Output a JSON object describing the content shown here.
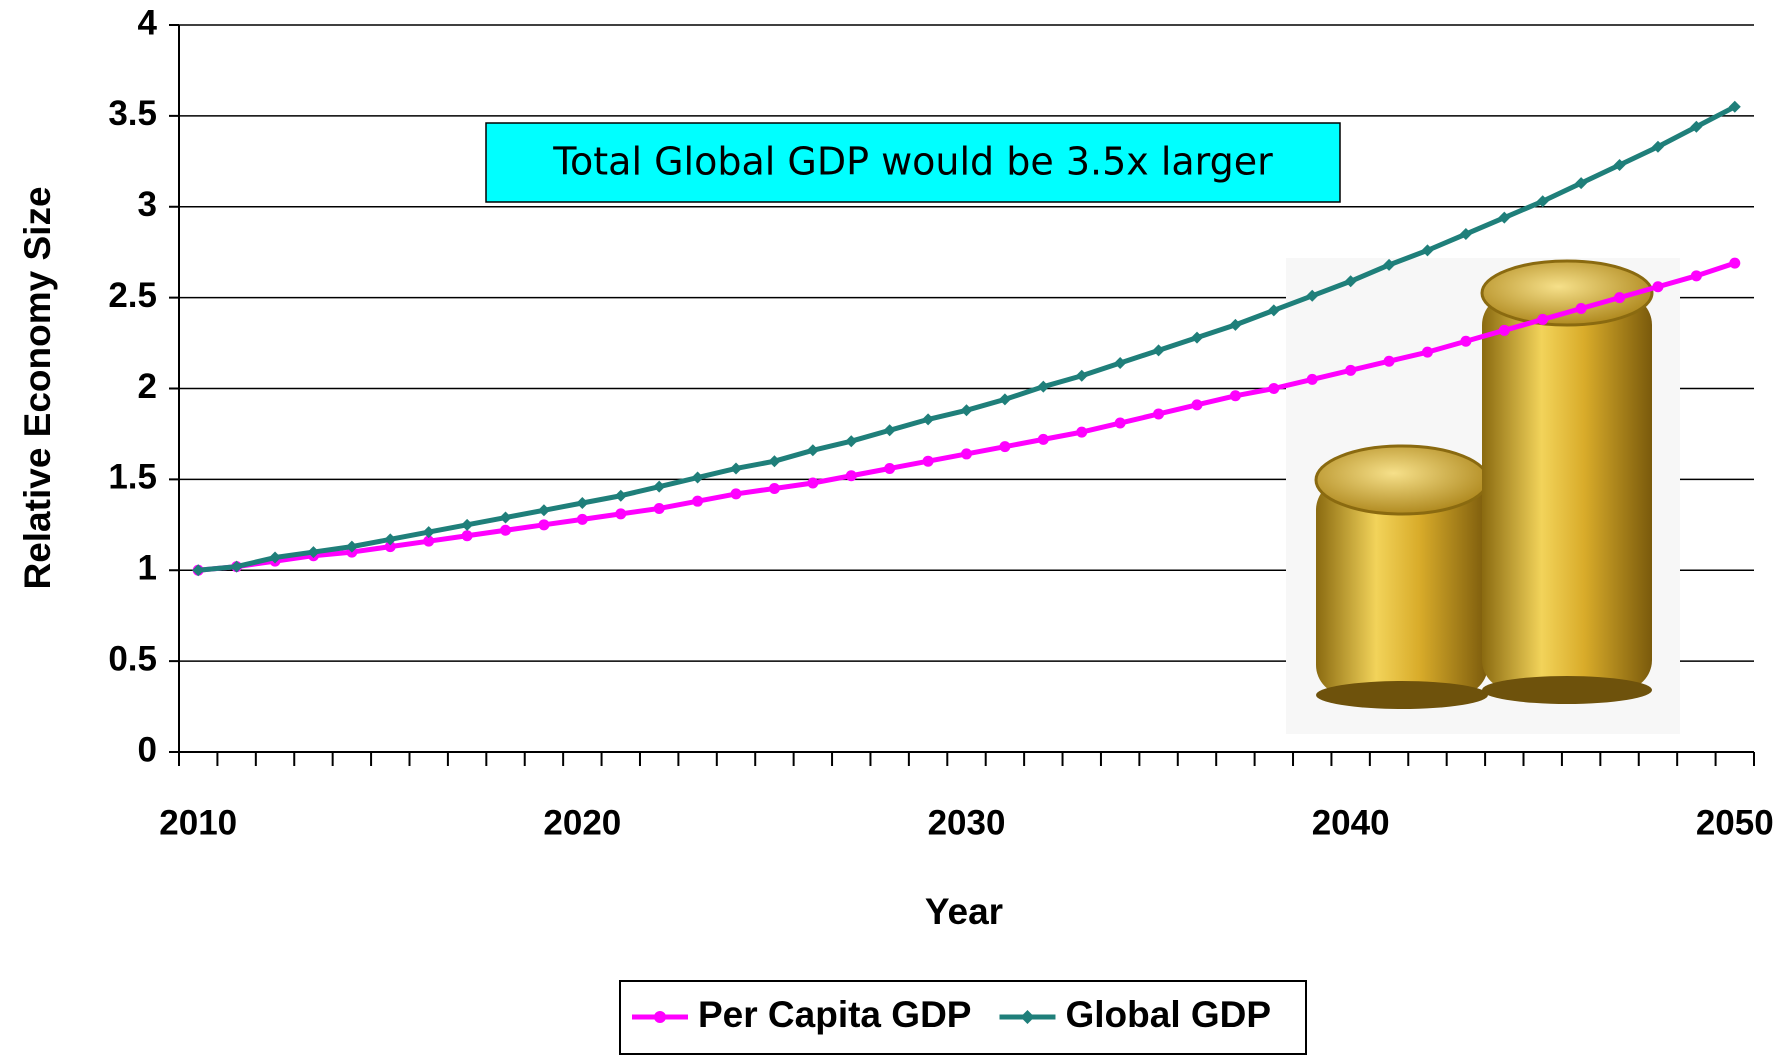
{
  "chart_data": {
    "type": "line",
    "annotation": "Total Global GDP would be 3.5x larger",
    "x_label": "Year",
    "y_label": "Relative Economy Size",
    "categories": [
      2010,
      null,
      null,
      null,
      null,
      null,
      null,
      null,
      null,
      null,
      2020,
      null,
      null,
      null,
      null,
      null,
      null,
      null,
      null,
      null,
      2030,
      null,
      null,
      null,
      null,
      null,
      null,
      null,
      null,
      null,
      2040,
      null,
      null,
      null,
      null,
      null,
      null,
      null,
      null,
      null,
      2050
    ],
    "series": [
      {
        "name": "Per Capita GDP",
        "color": "#ff00ff",
        "marker": "circle",
        "values": [
          1.0,
          1.02,
          1.05,
          1.08,
          1.1,
          1.13,
          1.16,
          1.19,
          1.22,
          1.25,
          1.28,
          1.31,
          1.34,
          1.38,
          1.42,
          1.45,
          1.48,
          1.52,
          1.56,
          1.6,
          1.64,
          1.68,
          1.72,
          1.76,
          1.81,
          1.86,
          1.91,
          1.96,
          2.0,
          2.05,
          2.1,
          2.15,
          2.2,
          2.26,
          2.32,
          2.38,
          2.44,
          2.5,
          2.56,
          2.62,
          2.69
        ]
      },
      {
        "name": "Global GDP",
        "color": "#1f7f7a",
        "marker": "diamond",
        "values": [
          1.0,
          1.02,
          1.07,
          1.1,
          1.13,
          1.17,
          1.21,
          1.25,
          1.29,
          1.33,
          1.37,
          1.41,
          1.46,
          1.51,
          1.56,
          1.6,
          1.66,
          1.71,
          1.77,
          1.83,
          1.88,
          1.94,
          2.01,
          2.07,
          2.14,
          2.21,
          2.28,
          2.35,
          2.43,
          2.51,
          2.59,
          2.68,
          2.76,
          2.85,
          2.94,
          3.03,
          3.13,
          3.23,
          3.33,
          3.44,
          3.55
        ]
      }
    ],
    "ylim": [
      0,
      4
    ],
    "yticks": [
      0,
      0.5,
      1,
      1.5,
      2,
      2.5,
      3,
      3.5,
      4
    ],
    "grid": true,
    "legend": "bottom"
  }
}
